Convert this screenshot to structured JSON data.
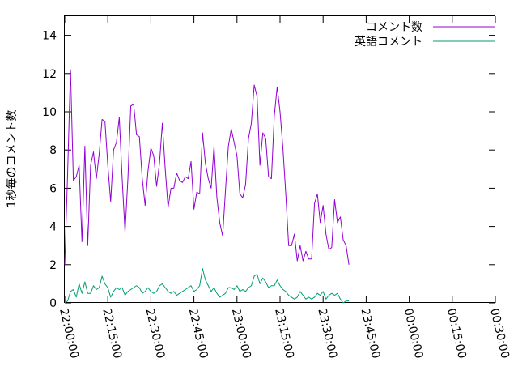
{
  "chart_data": {
    "type": "line",
    "title": "",
    "xlabel": "",
    "ylabel": "1秒毎のコメント数",
    "xlim": [
      "22:00:00",
      "00:30:00"
    ],
    "ylim": [
      0,
      15
    ],
    "x_ticks": [
      "22:00:00",
      "22:15:00",
      "22:30:00",
      "22:45:00",
      "23:00:00",
      "23:15:00",
      "23:30:00",
      "23:45:00",
      "00:00:00",
      "00:15:00",
      "00:30:00"
    ],
    "y_ticks": [
      "0",
      "2",
      "4",
      "6",
      "8",
      "10",
      "12",
      "14"
    ],
    "grid": false,
    "legend_position": "top-right",
    "x_interval_minutes": 1,
    "x_start": "22:00:00",
    "series": [
      {
        "name": "コメント数",
        "color": "#9400d3",
        "values": [
          2.0,
          6.8,
          12.2,
          6.4,
          6.6,
          7.2,
          3.2,
          8.2,
          3.0,
          7.2,
          7.9,
          6.5,
          7.8,
          9.6,
          9.5,
          7.2,
          5.3,
          8.0,
          8.4,
          9.7,
          6.5,
          3.7,
          6.5,
          10.3,
          10.4,
          8.8,
          8.7,
          6.5,
          5.1,
          6.9,
          8.1,
          7.7,
          6.1,
          7.3,
          9.4,
          7.0,
          5.0,
          6.0,
          6.0,
          6.8,
          6.4,
          6.3,
          6.6,
          6.5,
          7.4,
          4.9,
          5.8,
          5.7,
          8.9,
          7.3,
          6.5,
          6.0,
          8.2,
          5.5,
          4.2,
          3.5,
          5.9,
          8.2,
          9.1,
          8.4,
          7.7,
          5.7,
          5.5,
          6.2,
          8.6,
          9.4,
          11.4,
          10.8,
          7.2,
          8.9,
          8.6,
          6.6,
          6.5,
          9.8,
          11.3,
          10.0,
          8.1,
          5.7,
          3.0,
          3.0,
          3.6,
          2.2,
          3.0,
          2.2,
          2.7,
          2.3,
          2.3,
          5.2,
          5.7,
          4.2,
          5.1,
          3.6,
          2.8,
          2.9,
          5.4,
          4.2,
          4.5,
          3.3,
          3.0,
          2.0
        ]
      },
      {
        "name": "英語コメント",
        "color": "#009e73",
        "values": [
          0.0,
          0.1,
          0.6,
          0.7,
          0.3,
          1.0,
          0.5,
          1.1,
          0.5,
          0.5,
          0.9,
          0.7,
          0.8,
          1.4,
          1.0,
          0.8,
          0.3,
          0.6,
          0.8,
          0.7,
          0.8,
          0.4,
          0.6,
          0.7,
          0.8,
          0.9,
          0.8,
          0.5,
          0.6,
          0.8,
          0.6,
          0.5,
          0.6,
          0.9,
          1.0,
          0.8,
          0.6,
          0.5,
          0.6,
          0.4,
          0.5,
          0.6,
          0.7,
          0.8,
          0.9,
          0.6,
          0.7,
          0.9,
          1.8,
          1.2,
          0.9,
          0.6,
          0.8,
          0.5,
          0.3,
          0.4,
          0.5,
          0.8,
          0.8,
          0.7,
          0.9,
          0.6,
          0.7,
          0.6,
          0.8,
          0.9,
          1.4,
          1.5,
          1.0,
          1.3,
          1.1,
          0.8,
          0.9,
          0.9,
          1.2,
          0.9,
          0.7,
          0.6,
          0.4,
          0.3,
          0.2,
          0.3,
          0.6,
          0.4,
          0.2,
          0.3,
          0.2,
          0.3,
          0.5,
          0.4,
          0.6,
          0.2,
          0.4,
          0.5,
          0.4,
          0.5,
          0.2,
          0.0,
          0.1,
          0.1
        ]
      }
    ]
  }
}
